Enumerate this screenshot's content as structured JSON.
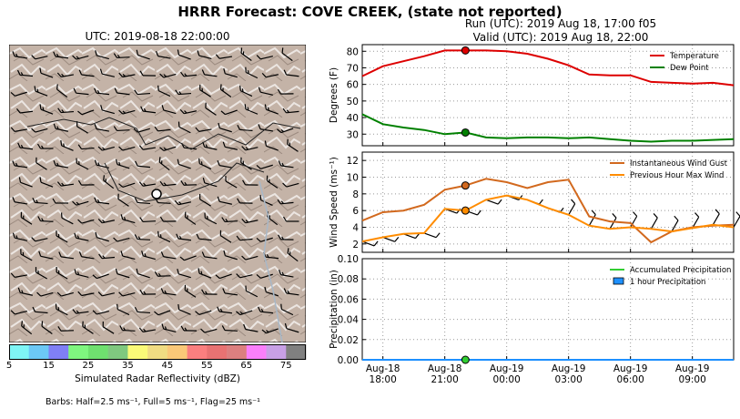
{
  "title": "HRRR Forecast: COVE CREEK, (state not reported)",
  "map": {
    "title": "UTC: 2019-08-18 22:00:00"
  },
  "run": {
    "line1": "Run (UTC): 2019 Aug 18, 17:00 f05",
    "line2": "Valid (UTC): 2019 Aug 18, 22:00"
  },
  "colorbar": {
    "label": "Simulated Radar Reflectivity (dBZ)",
    "ticks": [
      "5",
      "15",
      "25",
      "35",
      "45",
      "55",
      "65",
      "75"
    ],
    "colors": [
      "#7ff5f5",
      "#6cc8f5",
      "#7f7ff5",
      "#7ff57f",
      "#6fe06f",
      "#7fc87f",
      "#fafa78",
      "#f0dc82",
      "#fac878",
      "#fa7f7f",
      "#e87272",
      "#dc7f7f",
      "#fa7ffa",
      "#c8a0e6",
      "#808080"
    ]
  },
  "barbs_note": "Barbs: Half=2.5 ms⁻¹, Full=5 ms⁻¹, Flag=25 ms⁻¹",
  "chart_data": [
    {
      "type": "line",
      "ylabel": "Degrees (F)",
      "ylim": [
        23,
        84
      ],
      "yticks": [
        "30",
        "40",
        "50",
        "60",
        "70",
        "80"
      ],
      "grid": true,
      "legend": "top-right",
      "x": [
        "2019-08-18T17:00",
        "2019-08-18T18:00",
        "2019-08-18T19:00",
        "2019-08-18T20:00",
        "2019-08-18T21:00",
        "2019-08-18T22:00",
        "2019-08-18T23:00",
        "2019-08-19T00:00",
        "2019-08-19T01:00",
        "2019-08-19T02:00",
        "2019-08-19T03:00",
        "2019-08-19T04:00",
        "2019-08-19T05:00",
        "2019-08-19T06:00",
        "2019-08-19T07:00",
        "2019-08-19T08:00",
        "2019-08-19T09:00",
        "2019-08-19T10:00",
        "2019-08-19T11:00"
      ],
      "series": [
        {
          "name": "Temperature",
          "color": "#dd0000",
          "values": [
            65,
            71,
            74,
            77,
            80.5,
            80.5,
            80.5,
            80,
            78.5,
            75.5,
            71.5,
            66,
            65.5,
            65.5,
            61.5,
            61,
            60.5,
            61,
            59.5
          ]
        },
        {
          "name": "Dew Point",
          "color": "#008000",
          "values": [
            42,
            36,
            34,
            32.5,
            30,
            31,
            28,
            27.5,
            28,
            28,
            27.5,
            28,
            27,
            26,
            25.5,
            26,
            26,
            26.5,
            27
          ]
        }
      ],
      "marker": {
        "x": "2019-08-18T22:00",
        "values": [
          80.5,
          31
        ]
      }
    },
    {
      "type": "line",
      "ylabel": "Wind Speed (ms⁻¹)",
      "ylim": [
        1,
        13
      ],
      "yticks": [
        "2",
        "4",
        "6",
        "8",
        "10",
        "12"
      ],
      "grid": true,
      "legend": "top-right",
      "x": [
        "2019-08-18T17:00",
        "2019-08-18T18:00",
        "2019-08-18T19:00",
        "2019-08-18T20:00",
        "2019-08-18T21:00",
        "2019-08-18T22:00",
        "2019-08-18T23:00",
        "2019-08-19T00:00",
        "2019-08-19T01:00",
        "2019-08-19T02:00",
        "2019-08-19T03:00",
        "2019-08-19T04:00",
        "2019-08-19T05:00",
        "2019-08-19T06:00",
        "2019-08-19T07:00",
        "2019-08-19T08:00",
        "2019-08-19T09:00",
        "2019-08-19T10:00",
        "2019-08-19T11:00"
      ],
      "series": [
        {
          "name": "Instantaneous Wind Gust",
          "color": "#d2691e",
          "values": [
            4.8,
            5.8,
            6.0,
            6.7,
            8.5,
            9.0,
            9.8,
            9.4,
            8.7,
            9.4,
            9.7,
            5.3,
            4.7,
            4.5,
            2.2,
            3.5,
            4.0,
            4.2,
            4.3
          ]
        },
        {
          "name": "Previous Hour Max Wind",
          "color": "#ff8c00",
          "values": [
            2.3,
            2.8,
            3.2,
            3.3,
            6.2,
            6.0,
            7.3,
            7.8,
            7.3,
            6.3,
            5.5,
            4.2,
            3.8,
            4.0,
            3.8,
            3.5,
            3.9,
            4.3,
            4.0
          ]
        }
      ],
      "marker": {
        "x": "2019-08-18T22:00",
        "values": [
          9.0,
          6.0
        ]
      }
    },
    {
      "type": "line",
      "ylabel": "Precipitation (in)",
      "ylim": [
        0,
        0.1
      ],
      "yticks": [
        "0.00",
        "0.02",
        "0.04",
        "0.06",
        "0.08",
        "0.10"
      ],
      "grid": true,
      "legend": "top-right",
      "x": [
        "2019-08-18T17:00",
        "2019-08-18T18:00",
        "2019-08-18T19:00",
        "2019-08-18T20:00",
        "2019-08-18T21:00",
        "2019-08-18T22:00",
        "2019-08-18T23:00",
        "2019-08-19T00:00",
        "2019-08-19T01:00",
        "2019-08-19T02:00",
        "2019-08-19T03:00",
        "2019-08-19T04:00",
        "2019-08-19T05:00",
        "2019-08-19T06:00",
        "2019-08-19T07:00",
        "2019-08-19T08:00",
        "2019-08-19T09:00",
        "2019-08-19T10:00",
        "2019-08-19T11:00"
      ],
      "series": [
        {
          "name": "Accumulated Precipitation",
          "color": "#32cd32",
          "values": [
            0,
            0,
            0,
            0,
            0,
            0,
            0,
            0,
            0,
            0,
            0,
            0,
            0,
            0,
            0,
            0,
            0,
            0,
            0
          ]
        },
        {
          "name": "1 hour Precipitation",
          "color": "#1e90ff",
          "values": [
            0,
            0,
            0,
            0,
            0,
            0,
            0,
            0,
            0,
            0,
            0,
            0,
            0,
            0,
            0,
            0,
            0,
            0,
            0
          ]
        }
      ],
      "marker": {
        "x": "2019-08-18T22:00",
        "values": [
          0
        ]
      }
    }
  ],
  "xaxis": {
    "ticks": [
      {
        "x": "2019-08-18T18:00",
        "line1": "Aug-18",
        "line2": "18:00"
      },
      {
        "x": "2019-08-18T21:00",
        "line1": "Aug-18",
        "line2": "21:00"
      },
      {
        "x": "2019-08-19T00:00",
        "line1": "Aug-19",
        "line2": "00:00"
      },
      {
        "x": "2019-08-19T03:00",
        "line1": "Aug-19",
        "line2": "03:00"
      },
      {
        "x": "2019-08-19T06:00",
        "line1": "Aug-19",
        "line2": "06:00"
      },
      {
        "x": "2019-08-19T09:00",
        "line1": "Aug-19",
        "line2": "09:00"
      }
    ]
  }
}
